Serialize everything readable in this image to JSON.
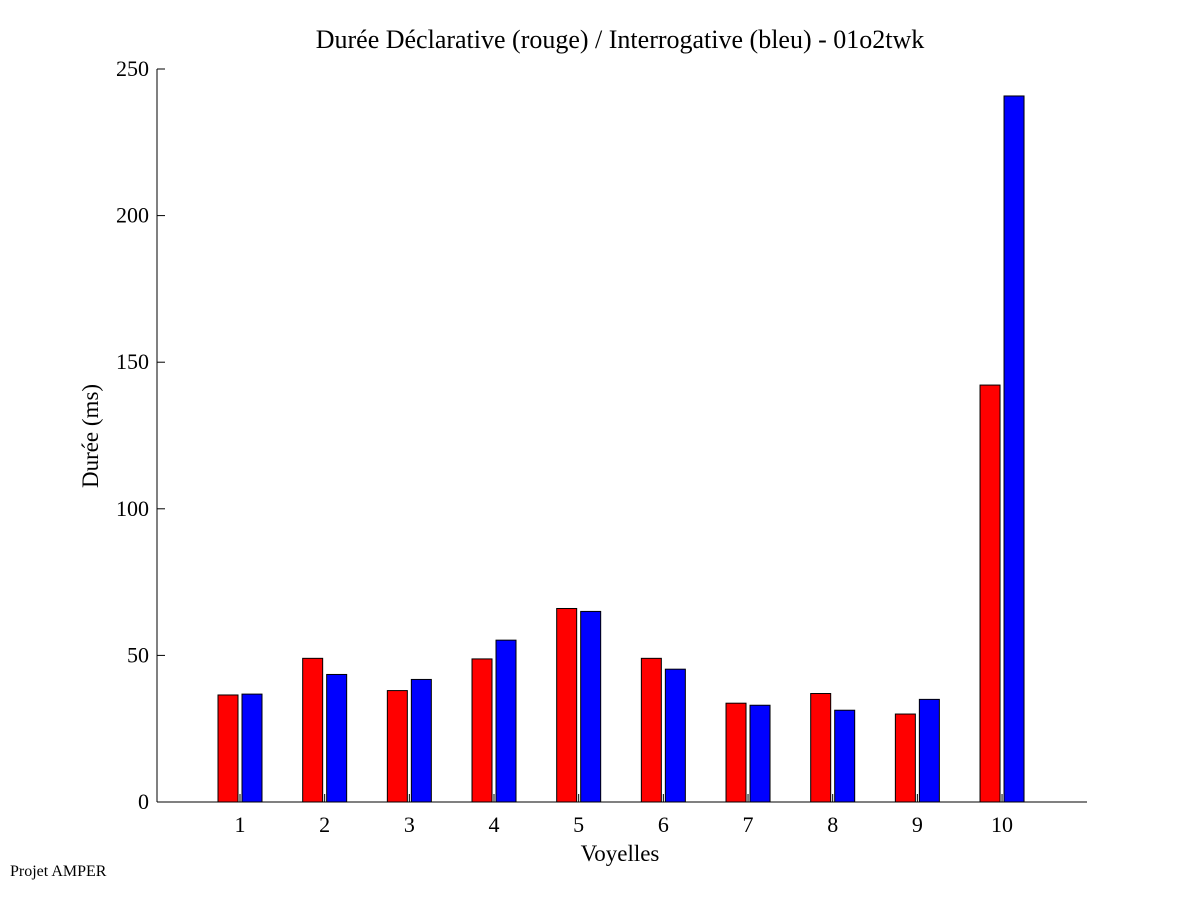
{
  "footer": {
    "text": "Projet AMPER"
  },
  "chart_data": {
    "type": "bar",
    "title": "Durée Déclarative (rouge) / Interrogative (bleu) - 01o2twk",
    "xlabel": "Voyelles",
    "ylabel": "Durée (ms)",
    "categories": [
      "1",
      "2",
      "3",
      "4",
      "5",
      "6",
      "7",
      "8",
      "9",
      "10"
    ],
    "series": [
      {
        "color": "#ff0000",
        "values": [
          36.5,
          49,
          38,
          48.8,
          66,
          49,
          33.7,
          37,
          30,
          142.2
        ]
      },
      {
        "color": "#0000ff",
        "values": [
          36.8,
          43.5,
          41.8,
          55.2,
          65,
          45.3,
          33,
          31.3,
          35,
          240.8
        ]
      }
    ],
    "ylim": [
      0,
      250
    ],
    "yticks": [
      0,
      50,
      100,
      150,
      200,
      250
    ],
    "grid": false,
    "legend": "none"
  }
}
